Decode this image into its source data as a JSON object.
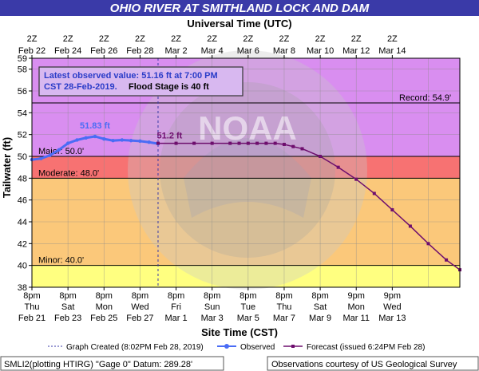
{
  "header": {
    "title": "OHIO RIVER AT SMITHLAND LOCK AND DAM"
  },
  "colors": {
    "title_bg": "#3a3aa8",
    "band_above_record": "#d98ef0",
    "band_major": "#d780ea",
    "band_moderate": "#f77272",
    "band_minor": "#fbc87a",
    "band_below_minor": "#ffff80",
    "observed": "#4a6cf5",
    "forecast": "#6e0e6e",
    "info_box_bg": "#d8b8f0",
    "info_text": "#2a3cc8"
  },
  "info_box": {
    "line1": "Latest observed value: 51.16 ft at 7:00 PM",
    "line2a": "CST 28-Feb-2019.",
    "line2b": "Flood Stage is 40 ft"
  },
  "legend": {
    "graph_created": "Graph Created (8:02PM Feb 28, 2019)",
    "observed": "Observed",
    "forecast": "Forecast (issued 6:24PM Feb 28)"
  },
  "footer": {
    "left": "SMLI2(plotting HTIRG) \"Gage 0\" Datum: 289.28'",
    "right": "Observations courtesy of US Geological Survey"
  },
  "watermark": {
    "text": "NOAA"
  },
  "chart_data": {
    "type": "line",
    "title": "OHIO RIVER AT SMITHLAND LOCK AND DAM",
    "top_axis_title": "Universal Time (UTC)",
    "top_ticks": [
      {
        "l1": "2Z",
        "l2": "Feb 22"
      },
      {
        "l1": "2Z",
        "l2": "Feb 24"
      },
      {
        "l1": "2Z",
        "l2": "Feb 26"
      },
      {
        "l1": "2Z",
        "l2": "Feb 28"
      },
      {
        "l1": "2Z",
        "l2": "Mar 2"
      },
      {
        "l1": "2Z",
        "l2": "Mar 4"
      },
      {
        "l1": "2Z",
        "l2": "Mar 6"
      },
      {
        "l1": "2Z",
        "l2": "Mar 8"
      },
      {
        "l1": "2Z",
        "l2": "Mar 10"
      },
      {
        "l1": "2Z",
        "l2": "Mar 12"
      },
      {
        "l1": "2Z",
        "l2": "Mar 14"
      }
    ],
    "xlabel": "Site Time (CST)",
    "bottom_ticks": [
      {
        "l1": "8pm",
        "l2": "Thu",
        "l3": "Feb 21"
      },
      {
        "l1": "8pm",
        "l2": "Sat",
        "l3": "Feb 23"
      },
      {
        "l1": "8pm",
        "l2": "Mon",
        "l3": "Feb 25"
      },
      {
        "l1": "8pm",
        "l2": "Wed",
        "l3": "Feb 27"
      },
      {
        "l1": "8pm",
        "l2": "Fri",
        "l3": "Mar 1"
      },
      {
        "l1": "8pm",
        "l2": "Sun",
        "l3": "Mar 3"
      },
      {
        "l1": "8pm",
        "l2": "Tue",
        "l3": "Mar 5"
      },
      {
        "l1": "8pm",
        "l2": "Thu",
        "l3": "Mar 7"
      },
      {
        "l1": "8pm",
        "l2": "Sat",
        "l3": "Mar 9"
      },
      {
        "l1": "9pm",
        "l2": "Mon",
        "l3": "Mar 11"
      },
      {
        "l1": "9pm",
        "l2": "Wed",
        "l3": "Mar 13"
      }
    ],
    "ylabel": "Tailwater (ft)",
    "ylim": [
      38,
      59
    ],
    "yticks": [
      38,
      40,
      42,
      44,
      46,
      48,
      50,
      52,
      54,
      56,
      58,
      59
    ],
    "xlim_days": [
      0,
      23.75
    ],
    "grid": true,
    "flood_categories": [
      {
        "name": "Record",
        "label": "Record: 54.9'",
        "value": 54.9
      },
      {
        "name": "Major",
        "label": "Major: 50.0'",
        "value": 50.0
      },
      {
        "name": "Moderate",
        "label": "Moderate: 48.0'",
        "value": 48.0
      },
      {
        "name": "Minor",
        "label": "Minor: 40.0'",
        "value": 40.0
      }
    ],
    "graph_created_day": 7.0,
    "series": [
      {
        "name": "Observed",
        "x": [
          0,
          0.5,
          1.0,
          1.5,
          2.0,
          2.5,
          3.0,
          3.5,
          4.0,
          4.5,
          5.0,
          5.5,
          6.0,
          6.5,
          7.0
        ],
        "y": [
          49.7,
          49.8,
          50.1,
          50.6,
          51.2,
          51.5,
          51.7,
          51.83,
          51.6,
          51.45,
          51.5,
          51.45,
          51.4,
          51.3,
          51.16
        ]
      },
      {
        "name": "Forecast",
        "x": [
          7.0,
          8.0,
          9.0,
          10.0,
          11.0,
          11.5,
          12.0,
          12.5,
          13.0,
          13.5,
          14.0,
          14.5,
          15.0,
          16.0,
          17.0,
          18.0,
          19.0,
          20.0,
          21.0,
          22.0,
          23.0,
          23.75
        ],
        "y": [
          51.2,
          51.2,
          51.2,
          51.2,
          51.2,
          51.2,
          51.2,
          51.2,
          51.2,
          51.2,
          51.1,
          50.9,
          50.7,
          50.0,
          49.0,
          47.9,
          46.6,
          45.1,
          43.6,
          42.0,
          40.5,
          39.6
        ]
      }
    ],
    "annotations": [
      {
        "text": "51.83 ft",
        "x": 3.5,
        "y": 51.83,
        "series": "Observed"
      },
      {
        "text": "51.2 ft",
        "x": 8.0,
        "y": 51.2,
        "series": "Forecast"
      }
    ]
  }
}
